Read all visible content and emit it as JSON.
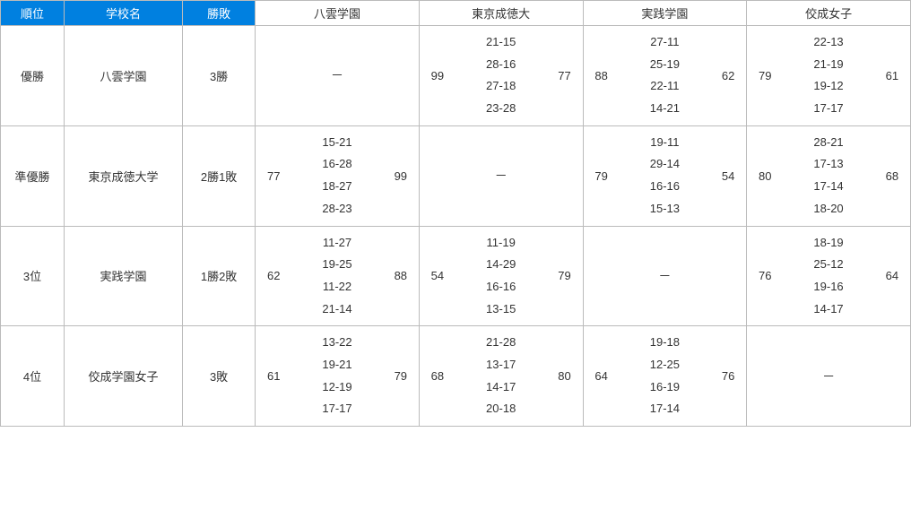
{
  "headers": {
    "rank": "順位",
    "school": "学校名",
    "record": "勝敗",
    "opponents": [
      "八雲学園",
      "東京成徳大",
      "実践学園",
      "佼成女子"
    ]
  },
  "rows": [
    {
      "rank": "優勝",
      "school": "八雲学園",
      "record": "3勝",
      "cells": [
        {
          "self": true
        },
        {
          "left": "99",
          "quarters": [
            "21-15",
            "28-16",
            "27-18",
            "23-28"
          ],
          "right": "77"
        },
        {
          "left": "88",
          "quarters": [
            "27-11",
            "25-19",
            "22-11",
            "14-21"
          ],
          "right": "62"
        },
        {
          "left": "79",
          "quarters": [
            "22-13",
            "21-19",
            "19-12",
            "17-17"
          ],
          "right": "61"
        }
      ]
    },
    {
      "rank": "準優勝",
      "school": "東京成徳大学",
      "record": "2勝1敗",
      "cells": [
        {
          "left": "77",
          "quarters": [
            "15-21",
            "16-28",
            "18-27",
            "28-23"
          ],
          "right": "99"
        },
        {
          "self": true
        },
        {
          "left": "79",
          "quarters": [
            "19-11",
            "29-14",
            "16-16",
            "15-13"
          ],
          "right": "54"
        },
        {
          "left": "80",
          "quarters": [
            "28-21",
            "17-13",
            "17-14",
            "18-20"
          ],
          "right": "68"
        }
      ]
    },
    {
      "rank": "3位",
      "school": "実践学園",
      "record": "1勝2敗",
      "cells": [
        {
          "left": "62",
          "quarters": [
            "11-27",
            "19-25",
            "11-22",
            "21-14"
          ],
          "right": "88"
        },
        {
          "left": "54",
          "quarters": [
            "11-19",
            "14-29",
            "16-16",
            "13-15"
          ],
          "right": "79"
        },
        {
          "self": true
        },
        {
          "left": "76",
          "quarters": [
            "18-19",
            "25-12",
            "19-16",
            "14-17"
          ],
          "right": "64"
        }
      ]
    },
    {
      "rank": "4位",
      "school": "佼成学園女子",
      "record": "3敗",
      "cells": [
        {
          "left": "61",
          "quarters": [
            "13-22",
            "19-21",
            "12-19",
            "17-17"
          ],
          "right": "79"
        },
        {
          "left": "68",
          "quarters": [
            "21-28",
            "13-17",
            "14-17",
            "20-18"
          ],
          "right": "80"
        },
        {
          "left": "64",
          "quarters": [
            "19-18",
            "12-25",
            "16-19",
            "17-14"
          ],
          "right": "76"
        },
        {
          "self": true
        }
      ]
    }
  ],
  "dash": "－"
}
